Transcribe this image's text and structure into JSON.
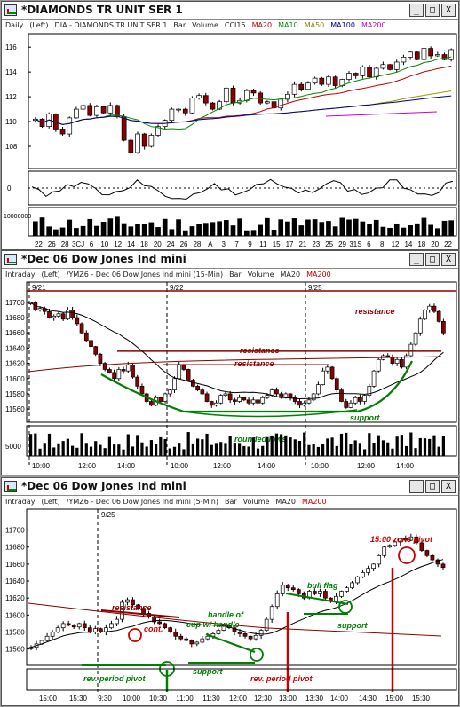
{
  "windows": [
    {
      "title": "*DIAMONDS TR UNIT SER 1",
      "info": [
        "Daily",
        "(Left)",
        "DIA - DIAMONDS TR UNIT SER 1",
        "Bar",
        "Volume",
        "CCI15",
        "MA20",
        "MA10",
        "MA50",
        "MA100",
        "MA200"
      ],
      "info_colors": [
        "#222",
        "#222",
        "#222",
        "#222",
        "#222",
        "#222",
        "#c00000",
        "#008800",
        "#888800",
        "#000088",
        "#cc00cc"
      ],
      "buttons": [
        "_",
        "□",
        "X"
      ]
    },
    {
      "title": "*Dec 06  Dow Jones Ind mini",
      "info": [
        "Intraday",
        "(Left)",
        "/YMZ6 - Dec 06  Dow Jones Ind mini  (15-Min)",
        "Bar",
        "Volume",
        "MA20",
        "MA200"
      ],
      "info_colors": [
        "#222",
        "#222",
        "#222",
        "#222",
        "#222",
        "#222",
        "#c00000"
      ],
      "buttons": [
        "_",
        "□",
        "X"
      ]
    },
    {
      "title": "*Dec 06  Dow Jones Ind mini",
      "info": [
        "Intraday",
        "(Left)",
        "/YMZ6 - Dec 06  Dow Jones Ind mini  (5-Min)",
        "Bar",
        "Volume",
        "MA20",
        "MA200"
      ],
      "info_colors": [
        "#222",
        "#222",
        "#222",
        "#222",
        "#222",
        "#222",
        "#c00000"
      ],
      "buttons": [
        "_",
        "□",
        "X"
      ]
    }
  ],
  "colors": {
    "up": "#ffffff",
    "down": "#8b0000",
    "ma20": "#000000",
    "ma200": "#8b0000",
    "green": "#008000",
    "red": "#cc0000"
  },
  "chart_data": [
    {
      "type": "candlestick",
      "price_ticks": [
        108,
        110,
        112,
        114,
        116
      ],
      "ylim": [
        106.5,
        116.8
      ],
      "x_labels": [
        "22",
        "26",
        "28",
        "3CJ",
        "6",
        "10",
        "12",
        "14",
        "18",
        "20",
        "24",
        "26",
        "28",
        "A",
        "3",
        "7",
        "9",
        "11",
        "15",
        "17",
        "21",
        "23",
        "25",
        "29",
        "31S",
        "6",
        "8",
        "12",
        "14",
        "18",
        "20",
        "22"
      ],
      "cci_ticks": [
        "0"
      ],
      "volume_ticks": [
        "10000000"
      ],
      "close_path": [
        110.2,
        109.6,
        110.6,
        109.4,
        109.0,
        110.3,
        111.0,
        111.3,
        110.5,
        111.2,
        110.7,
        111.3,
        110.4,
        108.5,
        107.5,
        109.0,
        108.0,
        108.9,
        109.6,
        110.1,
        111.0,
        111.0,
        110.7,
        111.9,
        112.1,
        111.5,
        111.0,
        111.6,
        112.7,
        111.5,
        111.7,
        112.5,
        112.3,
        111.5,
        111.6,
        111.1,
        111.8,
        112.2,
        113.0,
        112.6,
        113.1,
        113.5,
        113.0,
        113.6,
        112.9,
        113.4,
        113.9,
        113.7,
        114.4,
        113.6,
        114.3,
        114.6,
        114.2,
        114.8,
        115.2,
        115.6,
        115.0,
        115.9,
        115.3,
        115.4,
        115.0,
        115.8
      ]
    },
    {
      "type": "candlestick",
      "price_ticks": [
        11560,
        11580,
        11600,
        11620,
        11640,
        11660,
        11680,
        11700
      ],
      "ylim": [
        11545,
        11715
      ],
      "x_labels": [
        "10:00",
        "12:00",
        "14:00",
        "10:00",
        "12:00",
        "14:00",
        "10:00",
        "12:00",
        "14:00"
      ],
      "dates": [
        "9/21",
        "9/22",
        "9/25"
      ],
      "volume_ticks": [
        "5000"
      ],
      "levels": [
        11715,
        11636,
        11618
      ],
      "annotations": [
        "resistance",
        "resistance",
        "resistance",
        "support",
        "rounded lows"
      ],
      "close_path": [
        11700,
        11690,
        11692,
        11688,
        11680,
        11682,
        11685,
        11678,
        11690,
        11680,
        11672,
        11660,
        11650,
        11642,
        11632,
        11620,
        11612,
        11608,
        11600,
        11612,
        11610,
        11618,
        11602,
        11590,
        11580,
        11570,
        11565,
        11575,
        11570,
        11580,
        11585,
        11600,
        11618,
        11612,
        11598,
        11590,
        11585,
        11580,
        11570,
        11565,
        11568,
        11578,
        11580,
        11572,
        11570,
        11575,
        11572,
        11568,
        11572,
        11568,
        11575,
        11578,
        11585,
        11580,
        11575,
        11580,
        11575,
        11570,
        11565,
        11568,
        11572,
        11580,
        11592,
        11610,
        11615,
        11600,
        11585,
        11570,
        11562,
        11568,
        11575,
        11570,
        11578,
        11590,
        11610,
        11625,
        11630,
        11628,
        11620,
        11625,
        11615,
        11630,
        11645,
        11660,
        11678,
        11690,
        11695,
        11688,
        11675,
        11660
      ]
    },
    {
      "type": "candlestick",
      "price_ticks": [
        11560,
        11580,
        11600,
        11620,
        11640,
        11660,
        11680,
        11700
      ],
      "ylim": [
        11545,
        11710
      ],
      "x_labels": [
        "15:00",
        "15:30",
        "9:30",
        "10:00",
        "10:30",
        "11:00",
        "11:30",
        "12:00",
        "12:30",
        "13:00",
        "13:30",
        "14:00",
        "14:30",
        "15:00",
        "15:30"
      ],
      "dates": [
        "9/25"
      ],
      "annotations": [
        "resistance",
        "cont.",
        "handle of",
        "cup w/ handle",
        "support",
        "rev. period pivot",
        "bull flag",
        "support",
        "rev. period pivot",
        "15:00 zone pivot"
      ],
      "close_path": [
        11562,
        11566,
        11570,
        11575,
        11580,
        11585,
        11590,
        11588,
        11586,
        11590,
        11585,
        11580,
        11584,
        11580,
        11585,
        11590,
        11595,
        11615,
        11618,
        11612,
        11608,
        11602,
        11598,
        11592,
        11590,
        11585,
        11580,
        11575,
        11572,
        11570,
        11566,
        11568,
        11572,
        11575,
        11578,
        11582,
        11588,
        11585,
        11580,
        11578,
        11575,
        11572,
        11576,
        11582,
        11595,
        11610,
        11625,
        11635,
        11632,
        11630,
        11625,
        11620,
        11628,
        11625,
        11628,
        11620,
        11616,
        11622,
        11628,
        11632,
        11638,
        11645,
        11650,
        11655,
        11660,
        11670,
        11680,
        11682,
        11686,
        11690,
        11688,
        11692,
        11685,
        11676,
        11670,
        11665,
        11660,
        11656
      ]
    }
  ]
}
